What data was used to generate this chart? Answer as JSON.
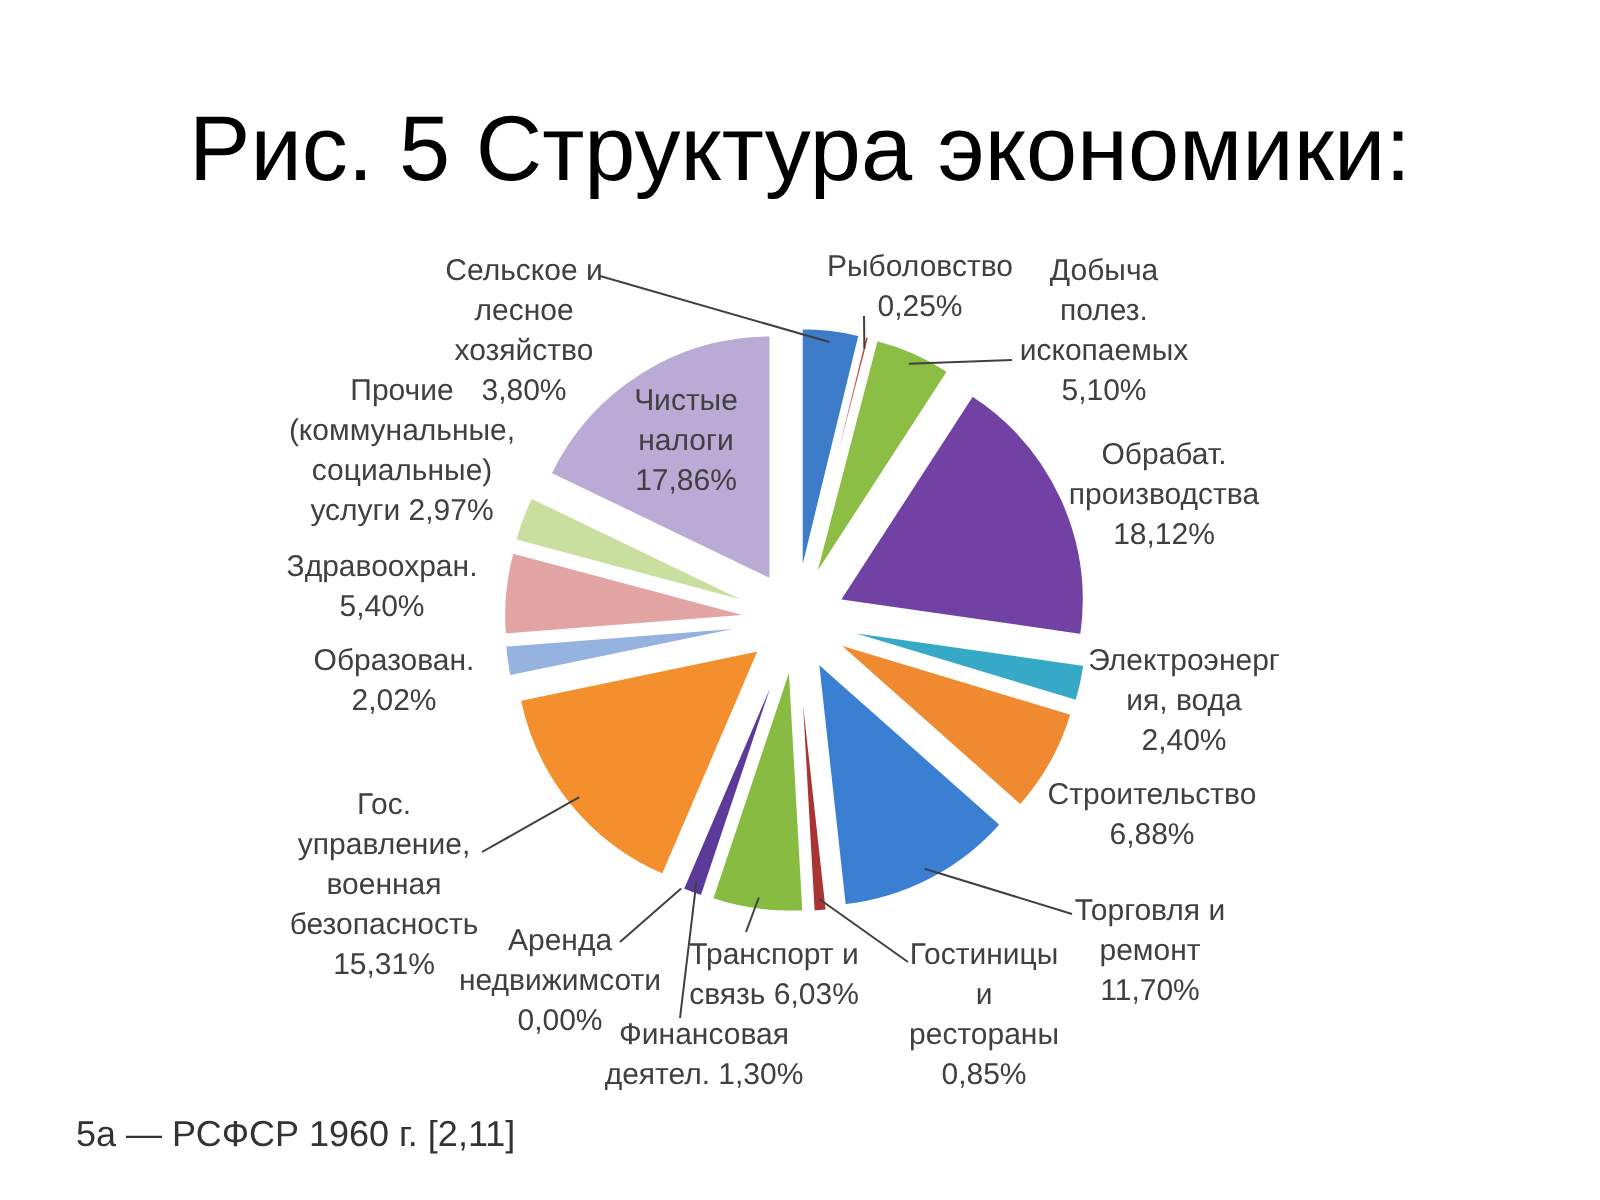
{
  "chart_data": {
    "type": "pie",
    "title": "Рис. 5 Структура экономики:",
    "categories": [
      "Сельское и\nлесное\nхозяйство",
      "Рыболовство",
      "Добыча\nполез.\nископаемых",
      "Обрабат.\nпроизводства",
      "Электроэнерг\nия, вода",
      "Строительство",
      "Торговля и\nремонт",
      "Гостиницы\nи\nрестораны",
      "Транспорт и\nсвязь",
      "Финансовая\nдеятел.",
      "Аренда\nнедвижимсоти",
      "Гос.\nуправление,\nвоенная\nбезопасность",
      "Образован.",
      "Здравоохран.",
      "Прочие\n(коммунальные,\nсоциальные)\nуслуги",
      "Чистые\nналоги"
    ],
    "values": [
      3.8,
      0.25,
      5.1,
      18.12,
      2.4,
      6.88,
      11.7,
      0.85,
      6.03,
      1.3,
      0.0,
      15.31,
      2.02,
      5.4,
      2.97,
      17.86
    ],
    "value_labels": [
      "3,80%",
      "0,25%",
      "5,10%",
      "18,12%",
      "2,40%",
      "6,88%",
      "11,70%",
      "0,85%",
      "6,03%",
      "1,30%",
      "0,00%",
      "15,31%",
      "2,02%",
      "5,40%",
      "2,97%",
      "17,86%"
    ],
    "colors": [
      "#3d7cc9",
      "#c0504d",
      "#8cbd44",
      "#7142a3",
      "#35a9c6",
      "#ef8a30",
      "#3b7fd3",
      "#a93434",
      "#88bb42",
      "#5b3a99",
      "#4bacc6",
      "#f48f2e",
      "#95b3de",
      "#e3a5a4",
      "#c9df9f",
      "#bcaad6"
    ],
    "annotations": [
      "5а — РСФСР 1960 г. [2,11]"
    ]
  }
}
